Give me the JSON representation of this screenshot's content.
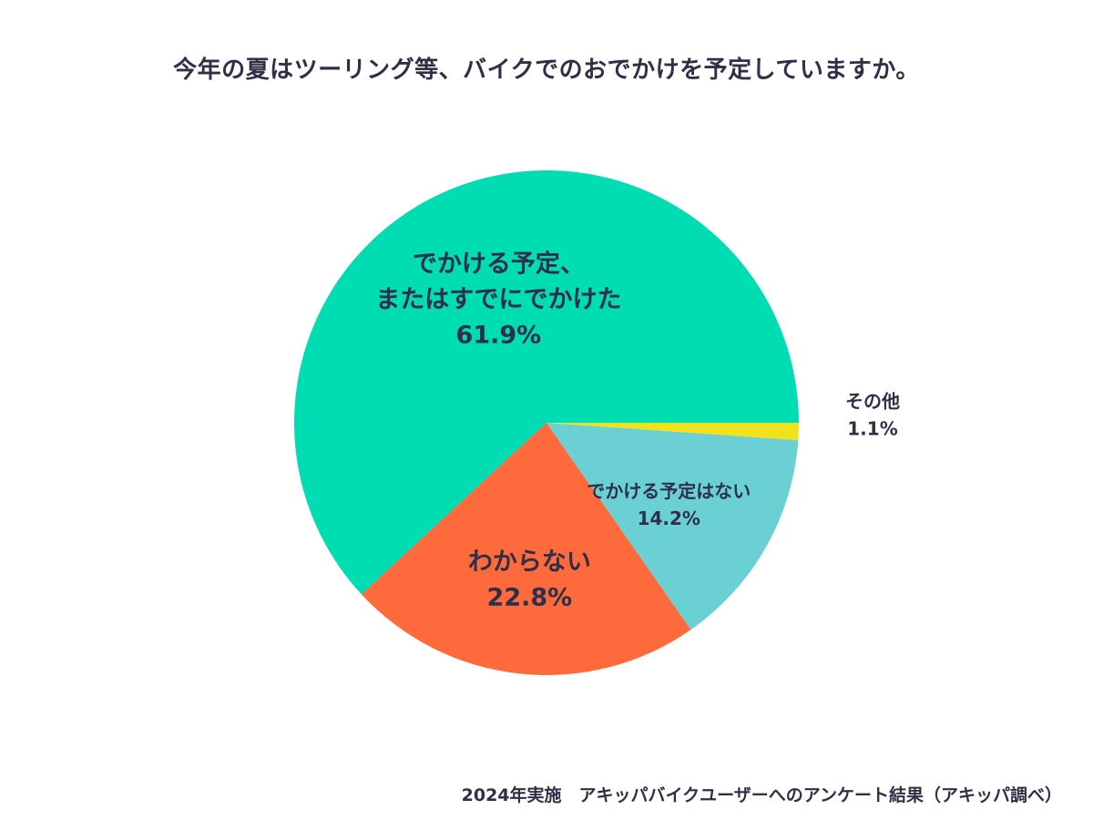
{
  "title": "今年の夏はツーリング等、バイクでのおでかけを予定していますか。",
  "footer": "2024年実施　アキッパバイクユーザーへのアンケート結果（アキッパ調べ）",
  "colors": {
    "text": "#2f3048"
  },
  "chart_data": {
    "type": "pie",
    "title": "今年の夏はツーリング等、バイクでのおでかけを予定していますか。",
    "unit": "%",
    "start": "3 o'clock",
    "direction": "clockwise",
    "slices": [
      {
        "label": "でかける予定、\nまたはすでにでかけた",
        "value": 61.9,
        "value_label": "61.9%",
        "color": "#00ddb3"
      },
      {
        "label": "わからない",
        "value": 22.8,
        "value_label": "22.8%",
        "color": "#ff6a3d"
      },
      {
        "label": "でかける予定はない",
        "value": 14.2,
        "value_label": "14.2%",
        "color": "#6ad0d4"
      },
      {
        "label": "その他",
        "value": 1.1,
        "value_label": "1.1%",
        "color": "#f1e21e"
      }
    ]
  }
}
